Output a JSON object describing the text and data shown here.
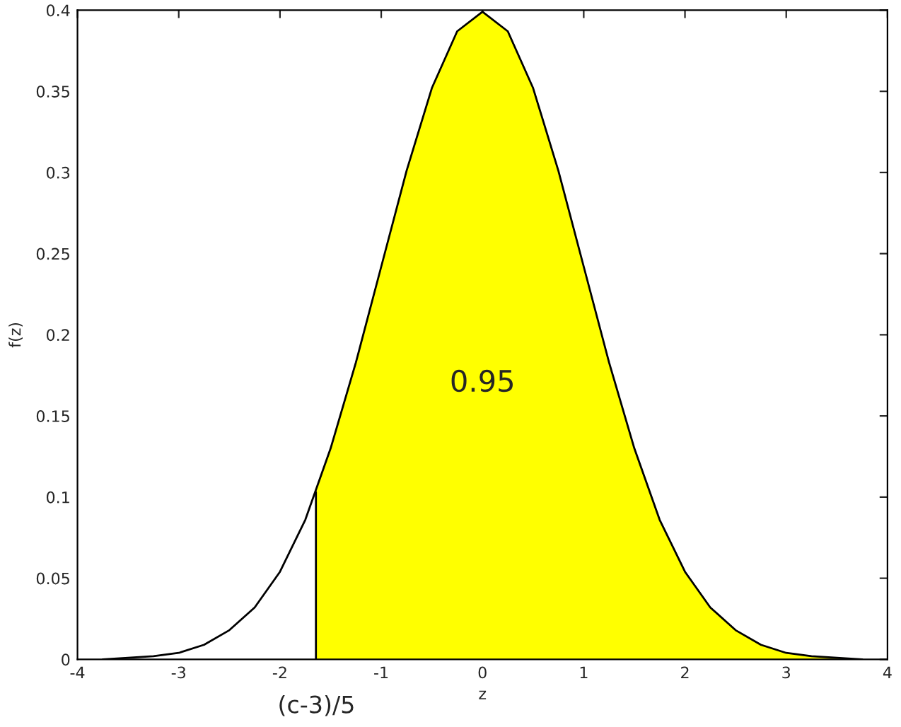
{
  "chart_data": {
    "type": "line",
    "xlabel": "z",
    "ylabel": "f(z)",
    "xlim": [
      -4,
      4
    ],
    "xticks": [
      -4,
      -3,
      -2,
      -1,
      0,
      1,
      2,
      3,
      4
    ],
    "ylim": [
      0,
      0.4
    ],
    "yticks": [
      0,
      0.05,
      0.1,
      0.15,
      0.2,
      0.25,
      0.3,
      0.35,
      0.4
    ],
    "grid": false,
    "series": [
      {
        "type": "area",
        "color": "#ffff00",
        "x": [
          -1.645,
          -1.5,
          -1.25,
          -1,
          -0.75,
          -0.5,
          -0.25,
          0,
          0.25,
          0.5,
          0.75,
          1,
          1.25,
          1.5,
          1.75,
          2,
          2.25,
          2.5,
          2.75,
          3,
          3.25,
          3.5,
          3.75
        ],
        "values": [
          0.103,
          0.13,
          0.183,
          0.242,
          0.301,
          0.352,
          0.387,
          0.399,
          0.387,
          0.352,
          0.301,
          0.242,
          0.183,
          0.13,
          0.086,
          0.054,
          0.032,
          0.018,
          0.009,
          0.004,
          0.002,
          0.001,
          0.0
        ]
      },
      {
        "color": "#000000",
        "x": [
          -1.645,
          -1.645
        ],
        "values": [
          0,
          0.103
        ]
      },
      {
        "color": "#000000",
        "x": [
          -3.75,
          -3.5,
          -3.25,
          -3,
          -2.75,
          -2.5,
          -2.25,
          -2,
          -1.75,
          -1.5,
          -1.25,
          -1,
          -0.75,
          -0.5,
          -0.25,
          0,
          0.25,
          0.5,
          0.75,
          1,
          1.25,
          1.5,
          1.75,
          2,
          2.25,
          2.5,
          2.75,
          3,
          3.25,
          3.5,
          3.75
        ],
        "values": [
          0.0,
          0.001,
          0.002,
          0.004,
          0.009,
          0.018,
          0.032,
          0.054,
          0.086,
          0.13,
          0.183,
          0.242,
          0.301,
          0.352,
          0.387,
          0.399,
          0.387,
          0.352,
          0.301,
          0.242,
          0.183,
          0.13,
          0.086,
          0.054,
          0.032,
          0.018,
          0.009,
          0.004,
          0.002,
          0.001,
          0.0
        ]
      }
    ],
    "annotations": [
      "0.95",
      "(c-3)/5"
    ]
  }
}
